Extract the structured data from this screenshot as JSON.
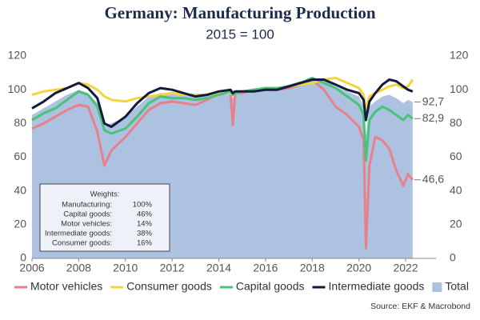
{
  "chart_data": {
    "type": "line",
    "title": "Germany: Manufacturing Production",
    "subtitle": "2015 = 100",
    "source": "Source: EKF & Macrobond",
    "x": [
      2006,
      2006.5,
      2007,
      2007.5,
      2008,
      2008.4,
      2008.8,
      2009.1,
      2009.4,
      2010,
      2010.5,
      2011,
      2011.5,
      2012,
      2012.5,
      2013,
      2013.5,
      2014,
      2014.5,
      2014.6,
      2014.7,
      2015,
      2015.5,
      2016,
      2016.5,
      2017,
      2017.5,
      2018,
      2018.5,
      2019,
      2019.5,
      2020,
      2020.2,
      2020.3,
      2020.45,
      2020.7,
      2021,
      2021.3,
      2021.6,
      2021.9,
      2022.1,
      2022.3
    ],
    "xlim": [
      2006,
      2023.3
    ],
    "xticks": [
      2006,
      2008,
      2010,
      2012,
      2014,
      2016,
      2018,
      2020,
      2022
    ],
    "ylim": [
      0,
      120
    ],
    "yticks": [
      0,
      20,
      40,
      60,
      80,
      100,
      120
    ],
    "grid": false,
    "series": [
      {
        "name": "Total",
        "color": "#adc2e0",
        "style": "area",
        "values": [
          85,
          89,
          93,
          97,
          100,
          98,
          92,
          79,
          80,
          84,
          90,
          96,
          98,
          98,
          97,
          96,
          97,
          99,
          100,
          95,
          99,
          99,
          100,
          101,
          101,
          103,
          105,
          107,
          106,
          102,
          99,
          96,
          90,
          73,
          90,
          93,
          96,
          97,
          95,
          92,
          94,
          92.7
        ]
      },
      {
        "name": "Motor vehicles",
        "color": "#e8808c",
        "style": "line",
        "values": [
          77,
          80,
          84,
          88,
          91,
          90,
          75,
          55,
          64,
          72,
          80,
          88,
          92,
          93,
          92,
          91,
          94,
          98,
          99,
          79,
          98,
          98,
          100,
          101,
          100,
          101,
          103,
          106,
          100,
          90,
          85,
          78,
          70,
          6,
          55,
          72,
          70,
          65,
          52,
          43,
          50,
          46.6
        ]
      },
      {
        "name": "Consumer goods",
        "color": "#f2d43c",
        "style": "line",
        "values": [
          97,
          99,
          100,
          101,
          104,
          103,
          100,
          96,
          94,
          93,
          95,
          96,
          97,
          98,
          97,
          97,
          97,
          98,
          98,
          97,
          98,
          99,
          100,
          101,
          101,
          102,
          103,
          104,
          106,
          107,
          104,
          101,
          97,
          88,
          96,
          98,
          100,
          102,
          103,
          101,
          102,
          106
        ]
      },
      {
        "name": "Capital goods",
        "color": "#45c47a",
        "style": "line",
        "values": [
          82,
          86,
          89,
          94,
          99,
          97,
          90,
          76,
          74,
          77,
          84,
          92,
          96,
          95,
          95,
          94,
          95,
          97,
          99,
          97,
          98,
          99,
          100,
          101,
          101,
          102,
          104,
          107,
          104,
          101,
          96,
          91,
          85,
          58,
          82,
          87,
          90,
          88,
          85,
          82,
          85,
          82.9
        ]
      },
      {
        "name": "Intermediate goods",
        "color": "#141a3c",
        "style": "line",
        "values": [
          89,
          93,
          98,
          101,
          104,
          101,
          95,
          80,
          78,
          84,
          92,
          98,
          101,
          100,
          98,
          96,
          97,
          99,
          100,
          98,
          99,
          99,
          99,
          100,
          100,
          102,
          104,
          106,
          106,
          103,
          100,
          98,
          94,
          82,
          93,
          98,
          103,
          106,
          105,
          102,
          100,
          99
        ]
      }
    ],
    "legend_order": [
      1,
      2,
      3,
      4,
      0
    ],
    "annotations": [
      {
        "value": 92.7,
        "label": "92,7"
      },
      {
        "value": 82.9,
        "label": "82,9"
      },
      {
        "value": 46.6,
        "label": "46,6"
      }
    ],
    "weights_box": {
      "title": "Weights:",
      "rows": [
        [
          "Manufacturing:",
          "100%"
        ],
        [
          "Capital goods:",
          "46%"
        ],
        [
          "Motor vehicles:",
          "14%"
        ],
        [
          "Intermediate goods:",
          "38%"
        ],
        [
          "Consumer goods:",
          "16%"
        ]
      ]
    }
  }
}
